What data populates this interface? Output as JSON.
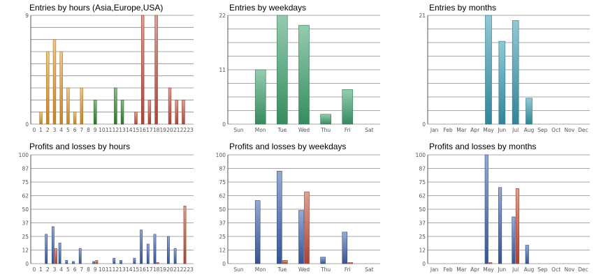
{
  "colors": {
    "orange": "#e39a2a",
    "green": "#2e8b2e",
    "red": "#c8503e",
    "teal_green": "#3fa36f",
    "cyan": "#3a9bb3",
    "blue": "#3f63ad",
    "loss_red": "#c9503b",
    "grid": "#8a8a8a"
  },
  "chart_data": [
    {
      "type": "bar",
      "title": "Entries by hours (Asia,Europe,USA)",
      "categories": [
        "0",
        "1",
        "2",
        "3",
        "4",
        "5",
        "6",
        "7",
        "8",
        "9",
        "10",
        "11",
        "12",
        "13",
        "14",
        "15",
        "16",
        "17",
        "18",
        "19",
        "20",
        "21",
        "22",
        "23"
      ],
      "ylim": [
        0,
        9
      ],
      "y_ticks": [
        "9",
        "0"
      ],
      "grid_lines": 9,
      "series": [
        {
          "values": [
            0,
            1,
            6,
            7,
            6,
            3,
            1,
            3,
            0,
            2,
            0,
            0,
            3,
            2,
            0,
            1,
            9,
            2,
            9,
            0,
            3,
            2,
            2,
            0
          ]
        }
      ],
      "bar_color_groups": [
        "orange",
        "orange",
        "orange",
        "orange",
        "orange",
        "orange",
        "orange",
        "orange",
        "green",
        "green",
        "green",
        "green",
        "green",
        "green",
        "green",
        "red",
        "red",
        "red",
        "red",
        "red",
        "red",
        "red",
        "red",
        "red"
      ]
    },
    {
      "type": "bar",
      "title": "Entries by weekdays",
      "categories": [
        "Sun",
        "Mon",
        "Tue",
        "Wed",
        "Thu",
        "Fri",
        "Sat"
      ],
      "ylim": [
        0,
        22
      ],
      "y_ticks": [
        "22",
        "11",
        "0"
      ],
      "grid_lines": 8,
      "series": [
        {
          "values": [
            0,
            11,
            22,
            20,
            2,
            7,
            0
          ]
        }
      ]
    },
    {
      "type": "bar",
      "title": "Entries by months",
      "categories": [
        "Jan",
        "Feb",
        "Mar",
        "Apr",
        "May",
        "Jun",
        "Jul",
        "Aug",
        "Sep",
        "Oct",
        "Nov",
        "Dec"
      ],
      "ylim": [
        0,
        21
      ],
      "y_ticks": [
        "21",
        "0"
      ],
      "grid_lines": 8,
      "series": [
        {
          "values": [
            0,
            0,
            0,
            0,
            21,
            16,
            20,
            5,
            0,
            0,
            0,
            0
          ]
        }
      ]
    },
    {
      "type": "bar",
      "title": "Profits and losses by hours",
      "categories": [
        "0",
        "1",
        "2",
        "3",
        "4",
        "5",
        "6",
        "7",
        "8",
        "9",
        "10",
        "11",
        "12",
        "13",
        "14",
        "15",
        "16",
        "17",
        "18",
        "19",
        "20",
        "21",
        "22",
        "23"
      ],
      "ylim": [
        0,
        100
      ],
      "y_ticks": [
        "100",
        "87",
        "75",
        "62",
        "50",
        "37",
        "25",
        "12",
        "0"
      ],
      "series": [
        {
          "values": [
            0,
            0,
            27,
            34,
            19,
            3,
            2,
            14,
            0,
            2,
            0,
            0,
            5,
            3,
            0,
            5,
            31,
            18,
            27,
            0,
            25,
            14,
            0,
            0
          ]
        },
        {
          "values": [
            0,
            0,
            0,
            14,
            0,
            0,
            0,
            0,
            0,
            3,
            0,
            0,
            0,
            0,
            0,
            0,
            0,
            0,
            1,
            0,
            0,
            0,
            53,
            0
          ]
        }
      ]
    },
    {
      "type": "bar",
      "title": "Profits and losses by weekdays",
      "categories": [
        "Sun",
        "Mon",
        "Tue",
        "Wed",
        "Thu",
        "Fri",
        "Sat"
      ],
      "ylim": [
        0,
        100
      ],
      "y_ticks": [
        "100",
        "87",
        "75",
        "62",
        "50",
        "37",
        "25",
        "12",
        "0"
      ],
      "series": [
        {
          "values": [
            0,
            58,
            85,
            49,
            6,
            29,
            0
          ]
        },
        {
          "values": [
            0,
            0,
            3,
            66,
            0,
            1,
            0
          ]
        }
      ]
    },
    {
      "type": "bar",
      "title": "Profits and losses by months",
      "categories": [
        "Jan",
        "Feb",
        "Mar",
        "Apr",
        "May",
        "Jun",
        "Jul",
        "Aug",
        "Sep",
        "Oct",
        "Nov",
        "Dec"
      ],
      "ylim": [
        0,
        100
      ],
      "y_ticks": [
        "100",
        "87",
        "75",
        "62",
        "50",
        "37",
        "25",
        "12",
        "0"
      ],
      "series": [
        {
          "values": [
            0,
            0,
            0,
            0,
            100,
            70,
            43,
            17,
            0,
            0,
            0,
            0
          ]
        },
        {
          "values": [
            0,
            0,
            0,
            0,
            1,
            0,
            69,
            0,
            0,
            0,
            0,
            0
          ]
        }
      ]
    }
  ]
}
